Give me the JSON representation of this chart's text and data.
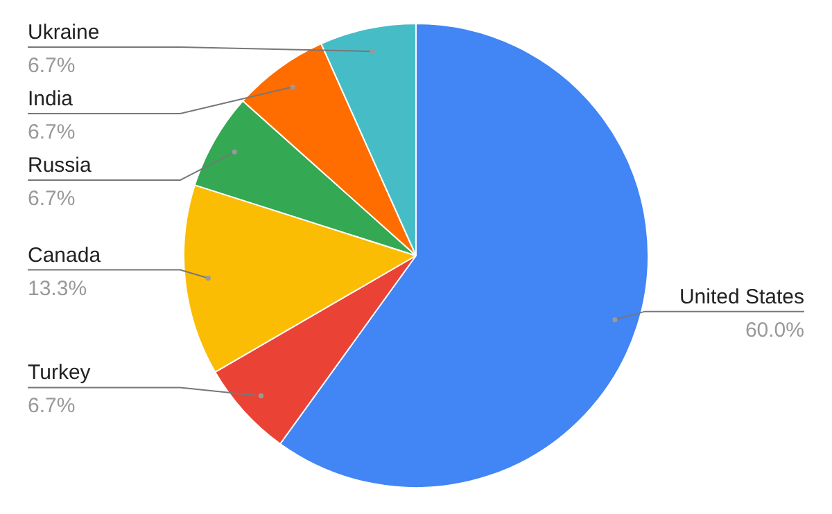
{
  "chart_data": {
    "type": "pie",
    "categories": [
      "United States",
      "Turkey",
      "Canada",
      "Russia",
      "India",
      "Ukraine"
    ],
    "values": [
      60.0,
      6.7,
      13.3,
      6.7,
      6.7,
      6.7
    ],
    "value_labels": [
      "60.0%",
      "6.7%",
      "13.3%",
      "6.7%",
      "6.7%",
      "6.7%"
    ],
    "colors": [
      "#4285f4",
      "#ea4335",
      "#fbbc04",
      "#34a853",
      "#ff6d01",
      "#46bdc6"
    ],
    "legend": false
  }
}
